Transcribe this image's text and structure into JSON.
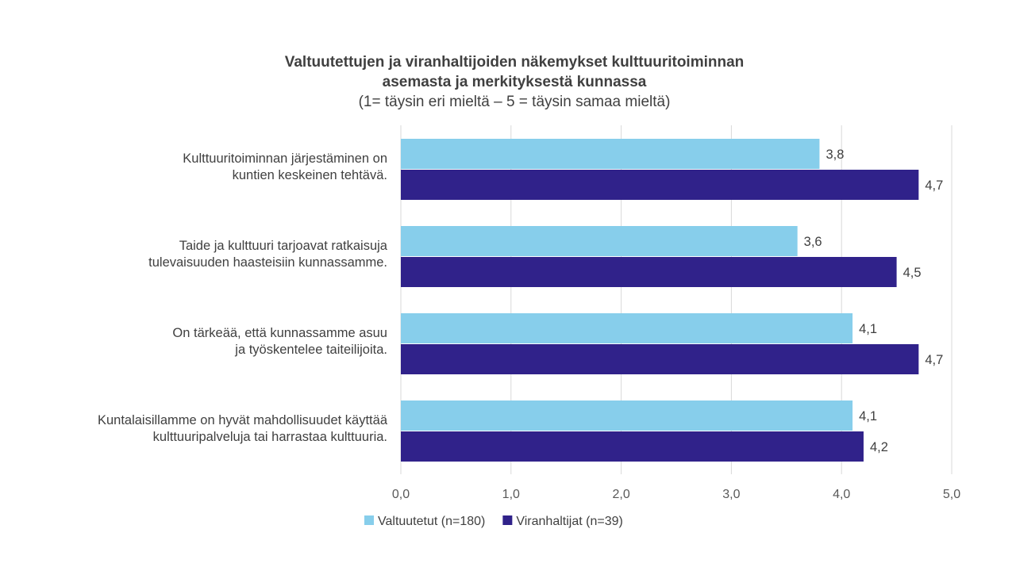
{
  "chart_data": {
    "type": "bar",
    "orientation": "horizontal",
    "title_line1": "Valtuutettujen ja viranhaltijoiden näkemykset kulttuuritoiminnan",
    "title_line2": "asemasta ja merkityksestä kunnassa",
    "subtitle": "(1= täysin eri mieltä – 5 = täysin samaa mieltä)",
    "categories": [
      [
        "Kulttuuritoiminnan järjestäminen on",
        "kuntien keskeinen tehtävä."
      ],
      [
        "Taide ja kulttuuri tarjoavat ratkaisuja",
        "tulevaisuuden haasteisiin kunnassamme."
      ],
      [
        "On tärkeää, että kunnassamme asuu",
        "ja työskentelee taiteilijoita."
      ],
      [
        "Kuntalaisillamme on hyvät mahdollisuudet käyttää",
        "kulttuuripalveluja tai harrastaa kulttuuria."
      ]
    ],
    "series": [
      {
        "name": "Valtuutetut (n=180)",
        "color": "#87ceeb",
        "values": [
          3.8,
          3.6,
          4.1,
          4.1
        ],
        "labels": [
          "3,8",
          "3,6",
          "4,1",
          "4,1"
        ]
      },
      {
        "name": "Viranhaltijat (n=39)",
        "color": "#30228a",
        "values": [
          4.7,
          4.5,
          4.7,
          4.2
        ],
        "labels": [
          "4,7",
          "4,5",
          "4,7",
          "4,2"
        ]
      }
    ],
    "xlim": [
      0,
      5
    ],
    "xticks": [
      0,
      1,
      2,
      3,
      4,
      5
    ],
    "xtick_labels": [
      "0,0",
      "1,0",
      "2,0",
      "3,0",
      "4,0",
      "5,0"
    ],
    "grid": true,
    "legend_position": "bottom"
  }
}
